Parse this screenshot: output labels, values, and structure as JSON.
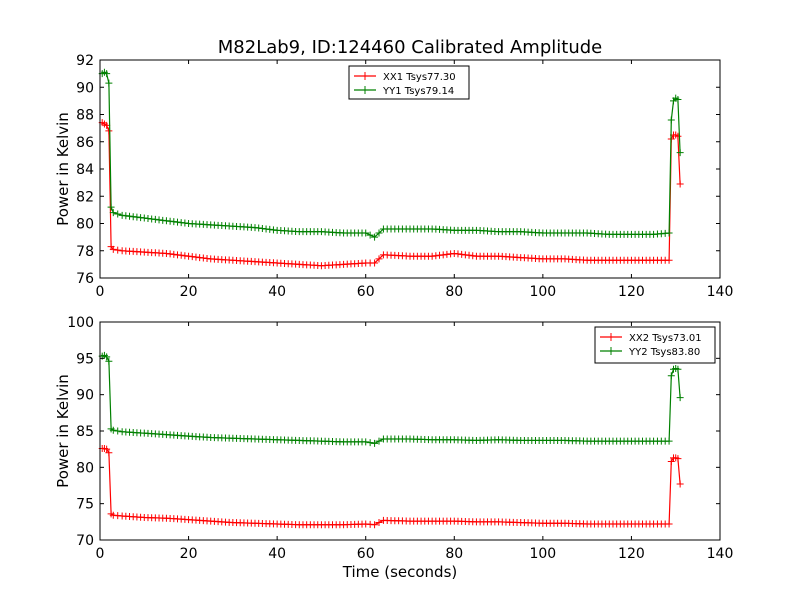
{
  "figure": {
    "title": "M82Lab9, ID:124460 Calibrated Amplitude"
  },
  "chart_data": [
    {
      "type": "line",
      "ylabel": "Power in Kelvin",
      "xlabel": "",
      "xlim": [
        0,
        140
      ],
      "ylim": [
        76,
        92
      ],
      "xticks": [
        0,
        20,
        40,
        60,
        80,
        100,
        120,
        140
      ],
      "yticks": [
        76,
        78,
        80,
        82,
        84,
        86,
        88,
        90,
        92
      ],
      "legend_position": "top-center",
      "grid": false,
      "series": [
        {
          "name": "XX1 Tsys77.30",
          "color": "#ff0000",
          "marker": "plus",
          "x": [
            0.5,
            1.0,
            1.5,
            2.0,
            2.5,
            3,
            5,
            10,
            15,
            20,
            25,
            30,
            35,
            40,
            45,
            50,
            55,
            60,
            62,
            64,
            70,
            75,
            80,
            85,
            90,
            95,
            100,
            105,
            110,
            115,
            120,
            125,
            128.5,
            129.0,
            129.5,
            130.0,
            130.5,
            131.0
          ],
          "y": [
            87.4,
            87.3,
            87.2,
            86.8,
            78.3,
            78.1,
            78.0,
            77.9,
            77.8,
            77.6,
            77.4,
            77.3,
            77.2,
            77.1,
            77.0,
            76.9,
            77.0,
            77.1,
            77.1,
            77.7,
            77.6,
            77.6,
            77.8,
            77.6,
            77.6,
            77.5,
            77.4,
            77.4,
            77.3,
            77.3,
            77.3,
            77.3,
            77.3,
            86.2,
            86.5,
            86.5,
            86.4,
            82.9
          ]
        },
        {
          "name": "YY1 Tsys79.14",
          "color": "#008000",
          "marker": "plus",
          "x": [
            0.5,
            1.0,
            1.5,
            2.0,
            2.5,
            3,
            5,
            10,
            15,
            20,
            25,
            30,
            35,
            40,
            45,
            50,
            55,
            60,
            62,
            64,
            70,
            75,
            80,
            85,
            90,
            95,
            100,
            105,
            110,
            115,
            120,
            125,
            128.5,
            129.0,
            129.5,
            130.0,
            130.5,
            131.0
          ],
          "y": [
            91.0,
            91.1,
            91.0,
            90.3,
            81.2,
            80.8,
            80.6,
            80.4,
            80.2,
            80.0,
            79.9,
            79.8,
            79.7,
            79.5,
            79.4,
            79.4,
            79.3,
            79.3,
            79.0,
            79.6,
            79.6,
            79.6,
            79.5,
            79.5,
            79.4,
            79.4,
            79.3,
            79.3,
            79.3,
            79.2,
            79.2,
            79.2,
            79.3,
            87.6,
            89.0,
            89.2,
            89.1,
            85.2
          ]
        }
      ]
    },
    {
      "type": "line",
      "ylabel": "Power in Kelvin",
      "xlabel": "Time (seconds)",
      "xlim": [
        0,
        140
      ],
      "ylim": [
        70,
        100
      ],
      "xticks": [
        0,
        20,
        40,
        60,
        80,
        100,
        120,
        140
      ],
      "yticks": [
        70,
        75,
        80,
        85,
        90,
        95,
        100
      ],
      "legend_position": "top-right",
      "grid": false,
      "series": [
        {
          "name": "XX2 Tsys73.01",
          "color": "#ff0000",
          "marker": "plus",
          "x": [
            0.5,
            1.0,
            1.5,
            2.0,
            2.5,
            3,
            5,
            10,
            15,
            20,
            25,
            30,
            35,
            40,
            45,
            50,
            55,
            60,
            62,
            64,
            70,
            75,
            80,
            85,
            90,
            95,
            100,
            105,
            110,
            115,
            120,
            125,
            128.5,
            129.0,
            129.5,
            130.0,
            130.5,
            131.0
          ],
          "y": [
            82.6,
            82.6,
            82.5,
            82.0,
            73.6,
            73.4,
            73.3,
            73.1,
            73.0,
            72.8,
            72.6,
            72.4,
            72.3,
            72.2,
            72.1,
            72.1,
            72.1,
            72.2,
            72.1,
            72.7,
            72.6,
            72.6,
            72.6,
            72.5,
            72.5,
            72.4,
            72.3,
            72.3,
            72.2,
            72.2,
            72.2,
            72.2,
            72.2,
            80.8,
            81.3,
            81.3,
            81.2,
            77.7
          ]
        },
        {
          "name": "YY2 Tsys83.80",
          "color": "#008000",
          "marker": "plus",
          "x": [
            0.5,
            1.0,
            1.5,
            2.0,
            2.5,
            3,
            5,
            10,
            15,
            20,
            25,
            30,
            35,
            40,
            45,
            50,
            55,
            60,
            62,
            64,
            70,
            75,
            80,
            85,
            90,
            95,
            100,
            105,
            110,
            115,
            120,
            125,
            128.5,
            129.0,
            129.5,
            130.0,
            130.5,
            131.0
          ],
          "y": [
            95.3,
            95.4,
            95.2,
            94.6,
            85.3,
            85.1,
            84.9,
            84.7,
            84.5,
            84.3,
            84.1,
            84.0,
            83.9,
            83.8,
            83.7,
            83.6,
            83.5,
            83.5,
            83.3,
            83.9,
            83.9,
            83.8,
            83.8,
            83.7,
            83.8,
            83.7,
            83.7,
            83.7,
            83.6,
            83.6,
            83.6,
            83.6,
            83.6,
            92.6,
            93.5,
            93.6,
            93.5,
            89.6
          ]
        }
      ]
    }
  ]
}
